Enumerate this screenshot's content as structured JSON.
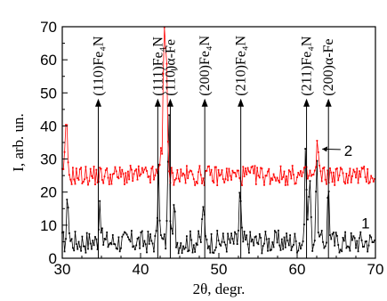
{
  "chart_data": {
    "type": "line",
    "xlabel": "2θ, degr.",
    "ylabel": "I, arb. un.",
    "xlim": [
      30,
      70
    ],
    "ylim": [
      0,
      70
    ],
    "xticks": [
      "30",
      "40",
      "50",
      "60",
      "70"
    ],
    "yticks": [
      "0",
      "10",
      "20",
      "30",
      "40",
      "50",
      "60",
      "70"
    ],
    "grid": false,
    "legend": "none",
    "series": [
      {
        "label": "1",
        "color": "#000000",
        "baseline": 5,
        "noise": 3.5,
        "peaks": [
          [
            30.7,
            14
          ],
          [
            34.8,
            13
          ],
          [
            42.3,
            20
          ],
          [
            43.6,
            38
          ],
          [
            44.3,
            10
          ],
          [
            48.0,
            12
          ],
          [
            52.7,
            15
          ],
          [
            61.1,
            27
          ],
          [
            61.6,
            20
          ],
          [
            62.5,
            23
          ],
          [
            64.0,
            17
          ]
        ],
        "label_at": [
          68.2,
          9
        ]
      },
      {
        "label": "2",
        "color": "#ff0000",
        "baseline": 25,
        "noise": 3,
        "peaks": [
          [
            30.5,
            18
          ],
          [
            42.6,
            8
          ],
          [
            43.0,
            45
          ],
          [
            43.3,
            35
          ],
          [
            62.6,
            10
          ]
        ],
        "label_at": [
          66.0,
          31
        ]
      }
    ],
    "annotations": [
      {
        "text": "(110)Fe₄N",
        "x": 34.6,
        "arrow_top": 48
      },
      {
        "text": "(111)Fe₄N",
        "x": 42.2,
        "arrow_top": 48
      },
      {
        "text": "(110)α-Fe",
        "x": 43.8,
        "arrow_top": 48
      },
      {
        "text": "(200)Fe₄N",
        "x": 48.2,
        "arrow_top": 48
      },
      {
        "text": "(210)Fe₄N",
        "x": 52.8,
        "arrow_top": 48
      },
      {
        "text": "(211)Fe₄N",
        "x": 61.2,
        "arrow_top": 48
      },
      {
        "text": "(200)α-Fe",
        "x": 64.0,
        "arrow_top": 48
      }
    ]
  }
}
